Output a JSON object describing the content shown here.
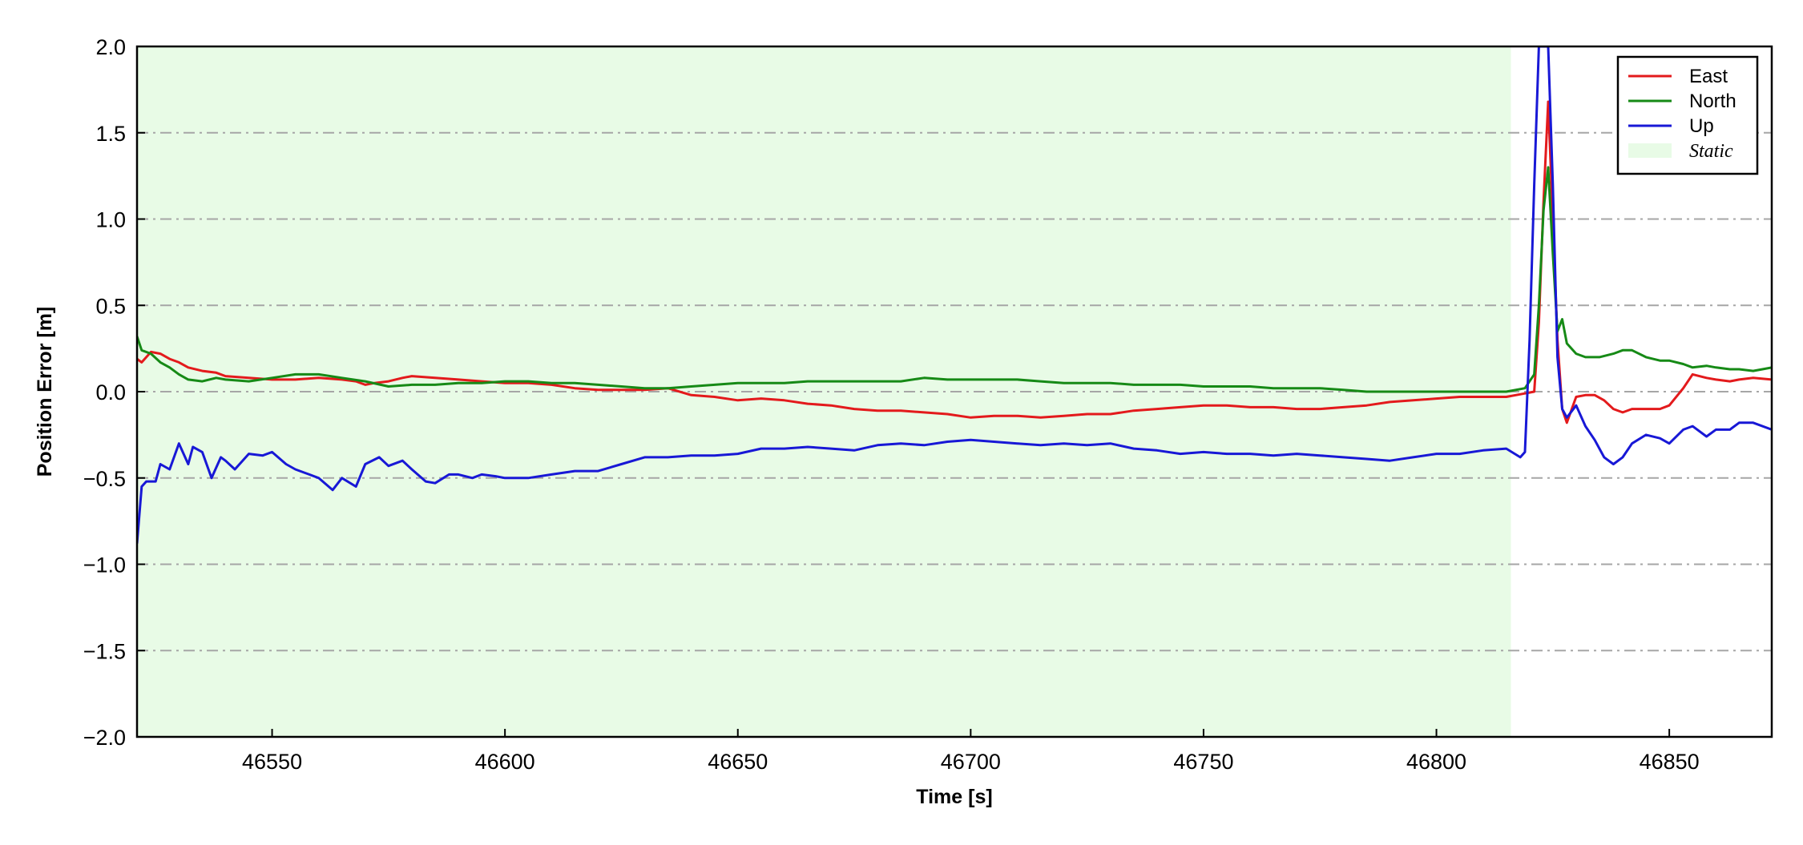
{
  "chart_data": {
    "type": "line",
    "xlabel": "Time [s]",
    "ylabel": "Position Error [m]",
    "xlim": [
      46521,
      46872
    ],
    "ylim": [
      -2.0,
      2.0
    ],
    "xticks": [
      46550,
      46600,
      46650,
      46700,
      46750,
      46800,
      46850
    ],
    "xtick_labels": [
      "46550",
      "46600",
      "46650",
      "46700",
      "46750",
      "46800",
      "46850"
    ],
    "yticks": [
      -2.0,
      -1.5,
      -1.0,
      -0.5,
      0.0,
      0.5,
      1.0,
      1.5,
      2.0
    ],
    "ytick_labels": [
      "−2.0",
      "−1.5",
      "−1.0",
      "−0.5",
      "0.0",
      "0.5",
      "1.0",
      "1.5",
      "2.0"
    ],
    "grid": "horizontal dash-dot",
    "legend_position": "top-right",
    "static_region": {
      "label": "Static",
      "x_start": 46521,
      "x_end": 46816,
      "color": "#e8fbe6"
    },
    "series": [
      {
        "name": "East",
        "color": "#e31a1c",
        "x": [
          46521,
          46522,
          46524,
          46526,
          46528,
          46530,
          46532,
          46535,
          46538,
          46540,
          46545,
          46550,
          46555,
          46560,
          46565,
          46568,
          46570,
          46572,
          46575,
          46578,
          46580,
          46585,
          46590,
          46595,
          46600,
          46605,
          46610,
          46615,
          46620,
          46625,
          46630,
          46635,
          46640,
          46645,
          46650,
          46655,
          46660,
          46665,
          46670,
          46675,
          46680,
          46685,
          46690,
          46695,
          46700,
          46705,
          46710,
          46715,
          46720,
          46725,
          46730,
          46735,
          46740,
          46745,
          46750,
          46755,
          46760,
          46765,
          46770,
          46775,
          46780,
          46785,
          46790,
          46795,
          46800,
          46805,
          46810,
          46815,
          46819,
          46821,
          46822,
          46823,
          46824,
          46825,
          46826,
          46827,
          46828,
          46830,
          46832,
          46834,
          46836,
          46838,
          46840,
          46842,
          46845,
          46848,
          46850,
          46853,
          46855,
          46858,
          46860,
          46863,
          46865,
          46868,
          46872
        ],
        "y": [
          0.19,
          0.17,
          0.23,
          0.22,
          0.19,
          0.17,
          0.14,
          0.12,
          0.11,
          0.09,
          0.08,
          0.07,
          0.07,
          0.08,
          0.07,
          0.06,
          0.04,
          0.05,
          0.06,
          0.08,
          0.09,
          0.08,
          0.07,
          0.06,
          0.05,
          0.05,
          0.04,
          0.02,
          0.01,
          0.01,
          0.01,
          0.02,
          -0.02,
          -0.03,
          -0.05,
          -0.04,
          -0.05,
          -0.07,
          -0.08,
          -0.1,
          -0.11,
          -0.11,
          -0.12,
          -0.13,
          -0.15,
          -0.14,
          -0.14,
          -0.15,
          -0.14,
          -0.13,
          -0.13,
          -0.11,
          -0.1,
          -0.09,
          -0.08,
          -0.08,
          -0.09,
          -0.09,
          -0.1,
          -0.1,
          -0.09,
          -0.08,
          -0.06,
          -0.05,
          -0.04,
          -0.03,
          -0.03,
          -0.03,
          -0.01,
          0.0,
          0.4,
          1.1,
          1.68,
          1.0,
          0.3,
          -0.1,
          -0.18,
          -0.03,
          -0.02,
          -0.02,
          -0.05,
          -0.1,
          -0.12,
          -0.1,
          -0.1,
          -0.1,
          -0.08,
          0.02,
          0.1,
          0.08,
          0.07,
          0.06,
          0.07,
          0.08,
          0.07
        ]
      },
      {
        "name": "North",
        "color": "#168a16",
        "x": [
          46521,
          46522,
          46524,
          46526,
          46528,
          46530,
          46532,
          46535,
          46538,
          46540,
          46545,
          46550,
          46555,
          46560,
          46565,
          46570,
          46575,
          46580,
          46585,
          46590,
          46595,
          46600,
          46605,
          46610,
          46615,
          46620,
          46625,
          46630,
          46635,
          46640,
          46645,
          46650,
          46655,
          46660,
          46665,
          46670,
          46675,
          46680,
          46685,
          46690,
          46695,
          46700,
          46705,
          46710,
          46715,
          46720,
          46725,
          46730,
          46735,
          46740,
          46745,
          46750,
          46755,
          46760,
          46765,
          46770,
          46775,
          46780,
          46785,
          46790,
          46795,
          46800,
          46805,
          46810,
          46815,
          46819,
          46821,
          46822,
          46823,
          46824,
          46825,
          46826,
          46827,
          46828,
          46830,
          46832,
          46835,
          46838,
          46840,
          46842,
          46845,
          46848,
          46850,
          46853,
          46855,
          46858,
          46860,
          46863,
          46865,
          46868,
          46870,
          46872
        ],
        "y": [
          0.32,
          0.24,
          0.22,
          0.17,
          0.14,
          0.1,
          0.07,
          0.06,
          0.08,
          0.07,
          0.06,
          0.08,
          0.1,
          0.1,
          0.08,
          0.06,
          0.03,
          0.04,
          0.04,
          0.05,
          0.05,
          0.06,
          0.06,
          0.05,
          0.05,
          0.04,
          0.03,
          0.02,
          0.02,
          0.03,
          0.04,
          0.05,
          0.05,
          0.05,
          0.06,
          0.06,
          0.06,
          0.06,
          0.06,
          0.08,
          0.07,
          0.07,
          0.07,
          0.07,
          0.06,
          0.05,
          0.05,
          0.05,
          0.04,
          0.04,
          0.04,
          0.03,
          0.03,
          0.03,
          0.02,
          0.02,
          0.02,
          0.01,
          0.0,
          0.0,
          0.0,
          0.0,
          0.0,
          0.0,
          0.0,
          0.02,
          0.1,
          0.5,
          1.05,
          1.3,
          0.8,
          0.35,
          0.42,
          0.28,
          0.22,
          0.2,
          0.2,
          0.22,
          0.24,
          0.24,
          0.2,
          0.18,
          0.18,
          0.16,
          0.14,
          0.15,
          0.14,
          0.13,
          0.13,
          0.12,
          0.13,
          0.14
        ]
      },
      {
        "name": "Up",
        "color": "#1818d6",
        "x": [
          46521,
          46522,
          46523,
          46525,
          46526,
          46528,
          46530,
          46532,
          46533,
          46535,
          46537,
          46539,
          46540,
          46542,
          46545,
          46548,
          46550,
          46553,
          46555,
          46558,
          46560,
          46563,
          46565,
          46568,
          46570,
          46573,
          46575,
          46578,
          46580,
          46583,
          46585,
          46588,
          46590,
          46593,
          46595,
          46598,
          46600,
          46605,
          46610,
          46615,
          46620,
          46625,
          46630,
          46635,
          46640,
          46645,
          46650,
          46655,
          46660,
          46665,
          46670,
          46675,
          46680,
          46685,
          46690,
          46695,
          46700,
          46705,
          46710,
          46715,
          46720,
          46725,
          46730,
          46735,
          46740,
          46745,
          46750,
          46755,
          46760,
          46765,
          46770,
          46775,
          46780,
          46785,
          46790,
          46795,
          46800,
          46805,
          46810,
          46815,
          46818,
          46819,
          46820,
          46821,
          46822,
          46823,
          46824,
          46825,
          46826,
          46827,
          46828,
          46830,
          46832,
          46834,
          46836,
          46838,
          46840,
          46842,
          46845,
          46848,
          46850,
          46853,
          46855,
          46858,
          46860,
          46863,
          46865,
          46868,
          46872
        ],
        "y": [
          -0.88,
          -0.55,
          -0.52,
          -0.52,
          -0.42,
          -0.45,
          -0.3,
          -0.42,
          -0.32,
          -0.35,
          -0.5,
          -0.38,
          -0.4,
          -0.45,
          -0.36,
          -0.37,
          -0.35,
          -0.42,
          -0.45,
          -0.48,
          -0.5,
          -0.57,
          -0.5,
          -0.55,
          -0.42,
          -0.38,
          -0.43,
          -0.4,
          -0.45,
          -0.52,
          -0.53,
          -0.48,
          -0.48,
          -0.5,
          -0.48,
          -0.49,
          -0.5,
          -0.5,
          -0.48,
          -0.46,
          -0.46,
          -0.42,
          -0.38,
          -0.38,
          -0.37,
          -0.37,
          -0.36,
          -0.33,
          -0.33,
          -0.32,
          -0.33,
          -0.34,
          -0.31,
          -0.3,
          -0.31,
          -0.29,
          -0.28,
          -0.29,
          -0.3,
          -0.31,
          -0.3,
          -0.31,
          -0.3,
          -0.33,
          -0.34,
          -0.36,
          -0.35,
          -0.36,
          -0.36,
          -0.37,
          -0.36,
          -0.37,
          -0.38,
          -0.39,
          -0.4,
          -0.38,
          -0.36,
          -0.36,
          -0.34,
          -0.33,
          -0.38,
          -0.35,
          0.3,
          1.2,
          2.0,
          2.0,
          2.0,
          1.2,
          0.2,
          -0.1,
          -0.15,
          -0.08,
          -0.2,
          -0.28,
          -0.38,
          -0.42,
          -0.38,
          -0.3,
          -0.25,
          -0.27,
          -0.3,
          -0.22,
          -0.2,
          -0.26,
          -0.22,
          -0.22,
          -0.18,
          -0.18,
          -0.22
        ]
      }
    ]
  }
}
